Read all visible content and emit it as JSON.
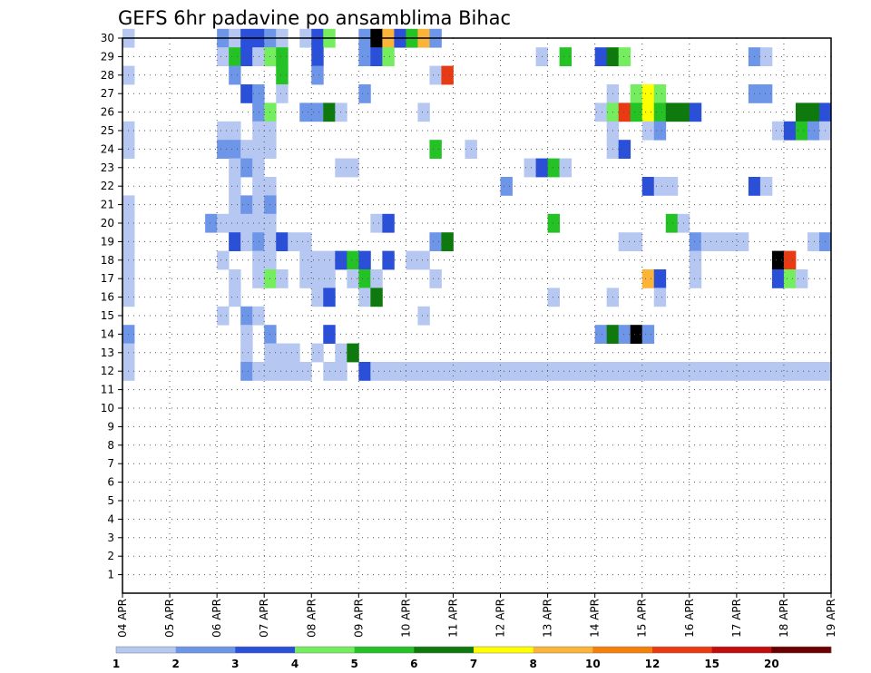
{
  "chart_data": {
    "type": "heatmap",
    "title": "GEFS 6hr padavine po ansamblima Bihac",
    "x_tick_labels": [
      "04 APR",
      "05 APR",
      "06 APR",
      "07 APR",
      "08 APR",
      "09 APR",
      "10 APR",
      "11 APR",
      "12 APR",
      "13 APR",
      "14 APR",
      "15 APR",
      "16 APR",
      "17 APR",
      "18 APR",
      "19 APR"
    ],
    "y_tick_labels": [
      "1",
      "2",
      "3",
      "4",
      "5",
      "6",
      "7",
      "8",
      "9",
      "10",
      "11",
      "12",
      "13",
      "14",
      "15",
      "16",
      "17",
      "18",
      "19",
      "20",
      "21",
      "22",
      "23",
      "24",
      "25",
      "26",
      "27",
      "28",
      "29",
      "30"
    ],
    "x_range": [
      0,
      60
    ],
    "y_range": [
      0,
      30
    ],
    "grid": true,
    "legend_position": "bottom",
    "colorbar": {
      "labels": [
        "1",
        "2",
        "3",
        "4",
        "5",
        "6",
        "7",
        "8",
        "10",
        "12",
        "15",
        "20"
      ],
      "colors": [
        "#b6c8f2",
        "#6e96e8",
        "#2a4fd8",
        "#74ee5e",
        "#25c225",
        "#0e7a0e",
        "#ffff00",
        "#fbb338",
        "#f4800a",
        "#e83a13",
        "#c00d0d",
        "#6a0000"
      ]
    },
    "cells": [
      [
        0,
        30,
        1
      ],
      [
        8,
        30,
        2
      ],
      [
        9,
        30,
        1
      ],
      [
        10,
        30,
        3
      ],
      [
        11,
        30,
        3
      ],
      [
        12,
        30,
        2
      ],
      [
        13,
        30,
        1
      ],
      [
        15,
        30,
        1
      ],
      [
        16,
        30,
        3
      ],
      [
        17,
        30,
        4
      ],
      [
        20,
        30,
        2
      ],
      [
        21,
        30,
        20
      ],
      [
        22,
        30,
        8
      ],
      [
        23,
        30,
        3
      ],
      [
        24,
        30,
        5
      ],
      [
        25,
        30,
        8
      ],
      [
        26,
        30,
        2
      ],
      [
        8,
        29,
        1
      ],
      [
        9,
        29,
        5
      ],
      [
        10,
        29,
        3
      ],
      [
        11,
        29,
        1
      ],
      [
        12,
        29,
        4
      ],
      [
        13,
        29,
        5
      ],
      [
        16,
        29,
        3
      ],
      [
        20,
        29,
        2
      ],
      [
        21,
        29,
        3
      ],
      [
        22,
        29,
        4
      ],
      [
        35,
        29,
        1
      ],
      [
        37,
        29,
        5
      ],
      [
        40,
        29,
        3
      ],
      [
        41,
        29,
        6
      ],
      [
        42,
        29,
        4
      ],
      [
        53,
        29,
        2
      ],
      [
        54,
        29,
        1
      ],
      [
        0,
        28,
        1
      ],
      [
        9,
        28,
        2
      ],
      [
        13,
        28,
        5
      ],
      [
        16,
        28,
        2
      ],
      [
        26,
        28,
        1
      ],
      [
        27,
        28,
        10
      ],
      [
        10,
        27,
        3
      ],
      [
        11,
        27,
        2
      ],
      [
        13,
        27,
        1
      ],
      [
        20,
        27,
        2
      ],
      [
        41,
        27,
        1
      ],
      [
        43,
        27,
        4
      ],
      [
        44,
        27,
        7
      ],
      [
        45,
        27,
        4
      ],
      [
        53,
        27,
        2
      ],
      [
        54,
        27,
        2
      ],
      [
        11,
        26,
        2
      ],
      [
        12,
        26,
        4
      ],
      [
        15,
        26,
        2
      ],
      [
        16,
        26,
        2
      ],
      [
        17,
        26,
        6
      ],
      [
        18,
        26,
        1
      ],
      [
        25,
        26,
        1
      ],
      [
        40,
        26,
        1
      ],
      [
        41,
        26,
        4
      ],
      [
        42,
        26,
        10
      ],
      [
        43,
        26,
        5
      ],
      [
        44,
        26,
        7
      ],
      [
        45,
        26,
        5
      ],
      [
        46,
        26,
        6
      ],
      [
        47,
        26,
        6
      ],
      [
        48,
        26,
        3
      ],
      [
        57,
        26,
        6
      ],
      [
        58,
        26,
        6
      ],
      [
        59,
        26,
        3
      ],
      [
        0,
        25,
        1
      ],
      [
        8,
        25,
        1
      ],
      [
        9,
        25,
        1
      ],
      [
        11,
        25,
        1
      ],
      [
        12,
        25,
        1
      ],
      [
        41,
        25,
        1
      ],
      [
        44,
        25,
        1
      ],
      [
        45,
        25,
        2
      ],
      [
        55,
        25,
        1
      ],
      [
        56,
        25,
        3
      ],
      [
        57,
        25,
        5
      ],
      [
        58,
        25,
        2
      ],
      [
        59,
        25,
        1
      ],
      [
        0,
        24,
        1
      ],
      [
        8,
        24,
        2
      ],
      [
        9,
        24,
        2
      ],
      [
        10,
        24,
        1
      ],
      [
        11,
        24,
        1
      ],
      [
        12,
        24,
        1
      ],
      [
        26,
        24,
        5
      ],
      [
        29,
        24,
        1
      ],
      [
        41,
        24,
        1
      ],
      [
        42,
        24,
        3
      ],
      [
        9,
        23,
        1
      ],
      [
        10,
        23,
        2
      ],
      [
        11,
        23,
        1
      ],
      [
        18,
        23,
        1
      ],
      [
        19,
        23,
        1
      ],
      [
        34,
        23,
        1
      ],
      [
        35,
        23,
        3
      ],
      [
        36,
        23,
        5
      ],
      [
        37,
        23,
        1
      ],
      [
        9,
        22,
        1
      ],
      [
        11,
        22,
        1
      ],
      [
        12,
        22,
        1
      ],
      [
        32,
        22,
        2
      ],
      [
        44,
        22,
        3
      ],
      [
        45,
        22,
        1
      ],
      [
        46,
        22,
        1
      ],
      [
        53,
        22,
        3
      ],
      [
        54,
        22,
        1
      ],
      [
        0,
        21,
        1
      ],
      [
        9,
        21,
        1
      ],
      [
        10,
        21,
        2
      ],
      [
        11,
        21,
        1
      ],
      [
        12,
        21,
        2
      ],
      [
        0,
        20,
        1
      ],
      [
        7,
        20,
        2
      ],
      [
        8,
        20,
        1
      ],
      [
        9,
        20,
        1
      ],
      [
        10,
        20,
        1
      ],
      [
        11,
        20,
        1
      ],
      [
        12,
        20,
        1
      ],
      [
        21,
        20,
        1
      ],
      [
        22,
        20,
        3
      ],
      [
        36,
        20,
        5
      ],
      [
        46,
        20,
        5
      ],
      [
        47,
        20,
        1
      ],
      [
        0,
        19,
        1
      ],
      [
        9,
        19,
        3
      ],
      [
        10,
        19,
        1
      ],
      [
        11,
        19,
        2
      ],
      [
        12,
        19,
        1
      ],
      [
        13,
        19,
        3
      ],
      [
        14,
        19,
        1
      ],
      [
        15,
        19,
        1
      ],
      [
        26,
        19,
        2
      ],
      [
        27,
        19,
        6
      ],
      [
        42,
        19,
        1
      ],
      [
        43,
        19,
        1
      ],
      [
        48,
        19,
        2
      ],
      [
        49,
        19,
        1
      ],
      [
        50,
        19,
        1
      ],
      [
        51,
        19,
        1
      ],
      [
        52,
        19,
        1
      ],
      [
        58,
        19,
        1
      ],
      [
        59,
        19,
        2
      ],
      [
        0,
        18,
        1
      ],
      [
        8,
        18,
        1
      ],
      [
        11,
        18,
        1
      ],
      [
        12,
        18,
        1
      ],
      [
        15,
        18,
        1
      ],
      [
        16,
        18,
        1
      ],
      [
        17,
        18,
        1
      ],
      [
        18,
        18,
        3
      ],
      [
        19,
        18,
        5
      ],
      [
        20,
        18,
        3
      ],
      [
        22,
        18,
        3
      ],
      [
        24,
        18,
        1
      ],
      [
        25,
        18,
        1
      ],
      [
        48,
        18,
        1
      ],
      [
        55,
        18,
        20
      ],
      [
        56,
        18,
        10
      ],
      [
        0,
        17,
        1
      ],
      [
        9,
        17,
        1
      ],
      [
        11,
        17,
        1
      ],
      [
        12,
        17,
        4
      ],
      [
        13,
        17,
        1
      ],
      [
        15,
        17,
        1
      ],
      [
        16,
        17,
        1
      ],
      [
        17,
        17,
        1
      ],
      [
        19,
        17,
        1
      ],
      [
        20,
        17,
        5
      ],
      [
        21,
        17,
        1
      ],
      [
        26,
        17,
        1
      ],
      [
        44,
        17,
        8
      ],
      [
        45,
        17,
        3
      ],
      [
        48,
        17,
        1
      ],
      [
        55,
        17,
        3
      ],
      [
        56,
        17,
        4
      ],
      [
        57,
        17,
        1
      ],
      [
        0,
        16,
        1
      ],
      [
        9,
        16,
        1
      ],
      [
        16,
        16,
        1
      ],
      [
        17,
        16,
        3
      ],
      [
        20,
        16,
        1
      ],
      [
        21,
        16,
        6
      ],
      [
        36,
        16,
        1
      ],
      [
        41,
        16,
        1
      ],
      [
        45,
        16,
        1
      ],
      [
        8,
        15,
        1
      ],
      [
        10,
        15,
        2
      ],
      [
        11,
        15,
        1
      ],
      [
        25,
        15,
        1
      ],
      [
        0,
        14,
        2
      ],
      [
        10,
        14,
        1
      ],
      [
        12,
        14,
        2
      ],
      [
        17,
        14,
        3
      ],
      [
        40,
        14,
        2
      ],
      [
        41,
        14,
        6
      ],
      [
        42,
        14,
        2
      ],
      [
        43,
        14,
        15
      ],
      [
        44,
        14,
        2
      ],
      [
        0,
        13,
        1
      ],
      [
        10,
        13,
        1
      ],
      [
        12,
        13,
        1
      ],
      [
        13,
        13,
        1
      ],
      [
        14,
        13,
        1
      ],
      [
        16,
        13,
        1
      ],
      [
        18,
        13,
        1
      ],
      [
        19,
        13,
        6
      ],
      [
        0,
        12,
        1
      ],
      [
        10,
        12,
        2
      ],
      [
        11,
        12,
        1
      ],
      [
        12,
        12,
        1
      ],
      [
        13,
        12,
        1
      ],
      [
        14,
        12,
        1
      ],
      [
        15,
        12,
        1
      ],
      [
        17,
        12,
        1
      ],
      [
        18,
        12,
        1
      ],
      [
        20,
        12,
        3
      ],
      [
        21,
        12,
        1
      ],
      [
        22,
        12,
        1
      ],
      [
        23,
        12,
        1
      ],
      [
        24,
        12,
        1
      ],
      [
        25,
        12,
        1
      ],
      [
        26,
        12,
        1
      ],
      [
        27,
        12,
        1
      ],
      [
        28,
        12,
        1
      ],
      [
        29,
        12,
        1
      ],
      [
        30,
        12,
        1
      ],
      [
        31,
        12,
        1
      ],
      [
        32,
        12,
        1
      ],
      [
        33,
        12,
        1
      ],
      [
        34,
        12,
        1
      ],
      [
        35,
        12,
        1
      ],
      [
        36,
        12,
        1
      ],
      [
        37,
        12,
        1
      ],
      [
        38,
        12,
        1
      ],
      [
        39,
        12,
        1
      ],
      [
        40,
        12,
        1
      ],
      [
        41,
        12,
        1
      ],
      [
        42,
        12,
        1
      ],
      [
        43,
        12,
        1
      ],
      [
        44,
        12,
        1
      ],
      [
        45,
        12,
        1
      ],
      [
        46,
        12,
        1
      ],
      [
        47,
        12,
        1
      ],
      [
        48,
        12,
        1
      ],
      [
        49,
        12,
        1
      ],
      [
        50,
        12,
        1
      ],
      [
        51,
        12,
        1
      ],
      [
        52,
        12,
        1
      ],
      [
        53,
        12,
        1
      ],
      [
        54,
        12,
        1
      ],
      [
        55,
        12,
        1
      ],
      [
        56,
        12,
        1
      ],
      [
        57,
        12,
        1
      ],
      [
        58,
        12,
        1
      ],
      [
        59,
        12,
        1
      ]
    ]
  }
}
